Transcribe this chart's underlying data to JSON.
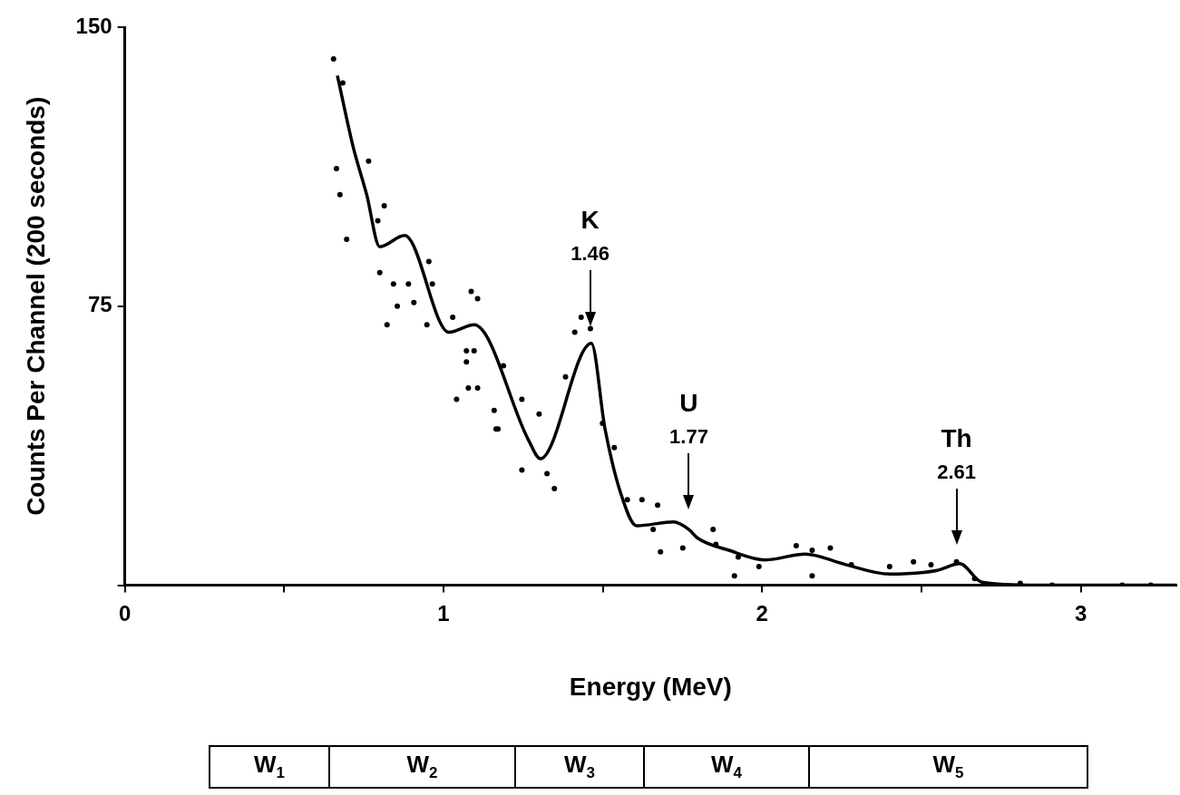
{
  "chart_data": {
    "type": "line",
    "xlabel": "Energy (MeV)",
    "ylabel": "Counts Per Channel (200 seconds)",
    "xlim": [
      0,
      3.3
    ],
    "xticks": [
      0,
      {
        "value": 0.5,
        "label": null
      },
      1,
      {
        "value": 1.5,
        "label": null
      },
      2,
      {
        "value": 2.5,
        "label": null
      },
      3
    ],
    "ylim": [
      0,
      150
    ],
    "yticks": [
      {
        "value": 0,
        "label": null
      },
      75,
      150
    ],
    "grid": false,
    "legend": false,
    "series": [
      {
        "type": "scatter",
        "marker": "circle",
        "color": "#000000",
        "x": [
          0.655,
          0.684,
          0.664,
          0.675,
          0.696,
          0.765,
          0.814,
          0.794,
          0.8,
          0.843,
          0.855,
          0.907,
          0.823,
          0.89,
          0.954,
          0.965,
          1.087,
          1.107,
          0.948,
          1.029,
          1.072,
          1.096,
          1.072,
          1.188,
          1.078,
          1.107,
          1.041,
          1.246,
          1.165,
          1.159,
          1.246,
          1.171,
          1.3,
          1.325,
          1.348,
          1.383,
          1.412,
          1.432,
          1.461,
          1.499,
          1.536,
          1.577,
          1.623,
          1.672,
          1.658,
          1.681,
          1.751,
          1.846,
          1.855,
          1.925,
          1.913,
          1.99,
          2.107,
          2.157,
          2.214,
          2.157,
          2.28,
          2.4,
          2.475,
          2.53,
          2.61,
          2.667,
          2.81,
          2.91,
          3.13,
          3.22
        ],
        "values": [
          141.5,
          135,
          112,
          105,
          93,
          114,
          102,
          98,
          84,
          81,
          75,
          76,
          70,
          81,
          87,
          81,
          79,
          77,
          70,
          72,
          63,
          63,
          60,
          59,
          53,
          53,
          50,
          50,
          42,
          47,
          31,
          42,
          46,
          30,
          26,
          56,
          68,
          72,
          69,
          43.5,
          37,
          23,
          23,
          21.5,
          15,
          9,
          10,
          15,
          11,
          7.6,
          2.5,
          5,
          10.6,
          9.4,
          10,
          2.5,
          5.5,
          5,
          6.3,
          5.5,
          6.3,
          1.8,
          0.5,
          0,
          0,
          0
        ]
      },
      {
        "type": "line",
        "marker": "none",
        "line_style": "solid",
        "color": "#000000",
        "x": [
          0.667,
          0.716,
          0.759,
          0.8,
          0.878,
          1.017,
          1.096,
          1.267,
          1.304,
          1.464,
          1.507,
          1.557,
          1.606,
          1.722,
          1.77,
          1.797,
          1.896,
          2.01,
          2.136,
          2.26,
          2.4,
          2.55,
          2.62,
          2.69,
          2.86,
          3.3
        ],
        "values": [
          137,
          118,
          105,
          91,
          94,
          68,
          70,
          39,
          34,
          65,
          42,
          24.5,
          16,
          17,
          15,
          12.7,
          9.4,
          6.8,
          8.4,
          5.6,
          3,
          4,
          5.8,
          0.8,
          0,
          0
        ]
      }
    ],
    "annotations": [
      "K",
      {
        "text": "1.46",
        "x": 1.46
      },
      "U",
      {
        "text": "1.77",
        "x": 1.77
      },
      "Th",
      {
        "text": "2.61",
        "x": 2.61
      },
      "W$_{1}$",
      "W$_{2}$",
      "W$_{3}$",
      "W$_{4}$",
      "W$_{5}$"
    ]
  }
}
